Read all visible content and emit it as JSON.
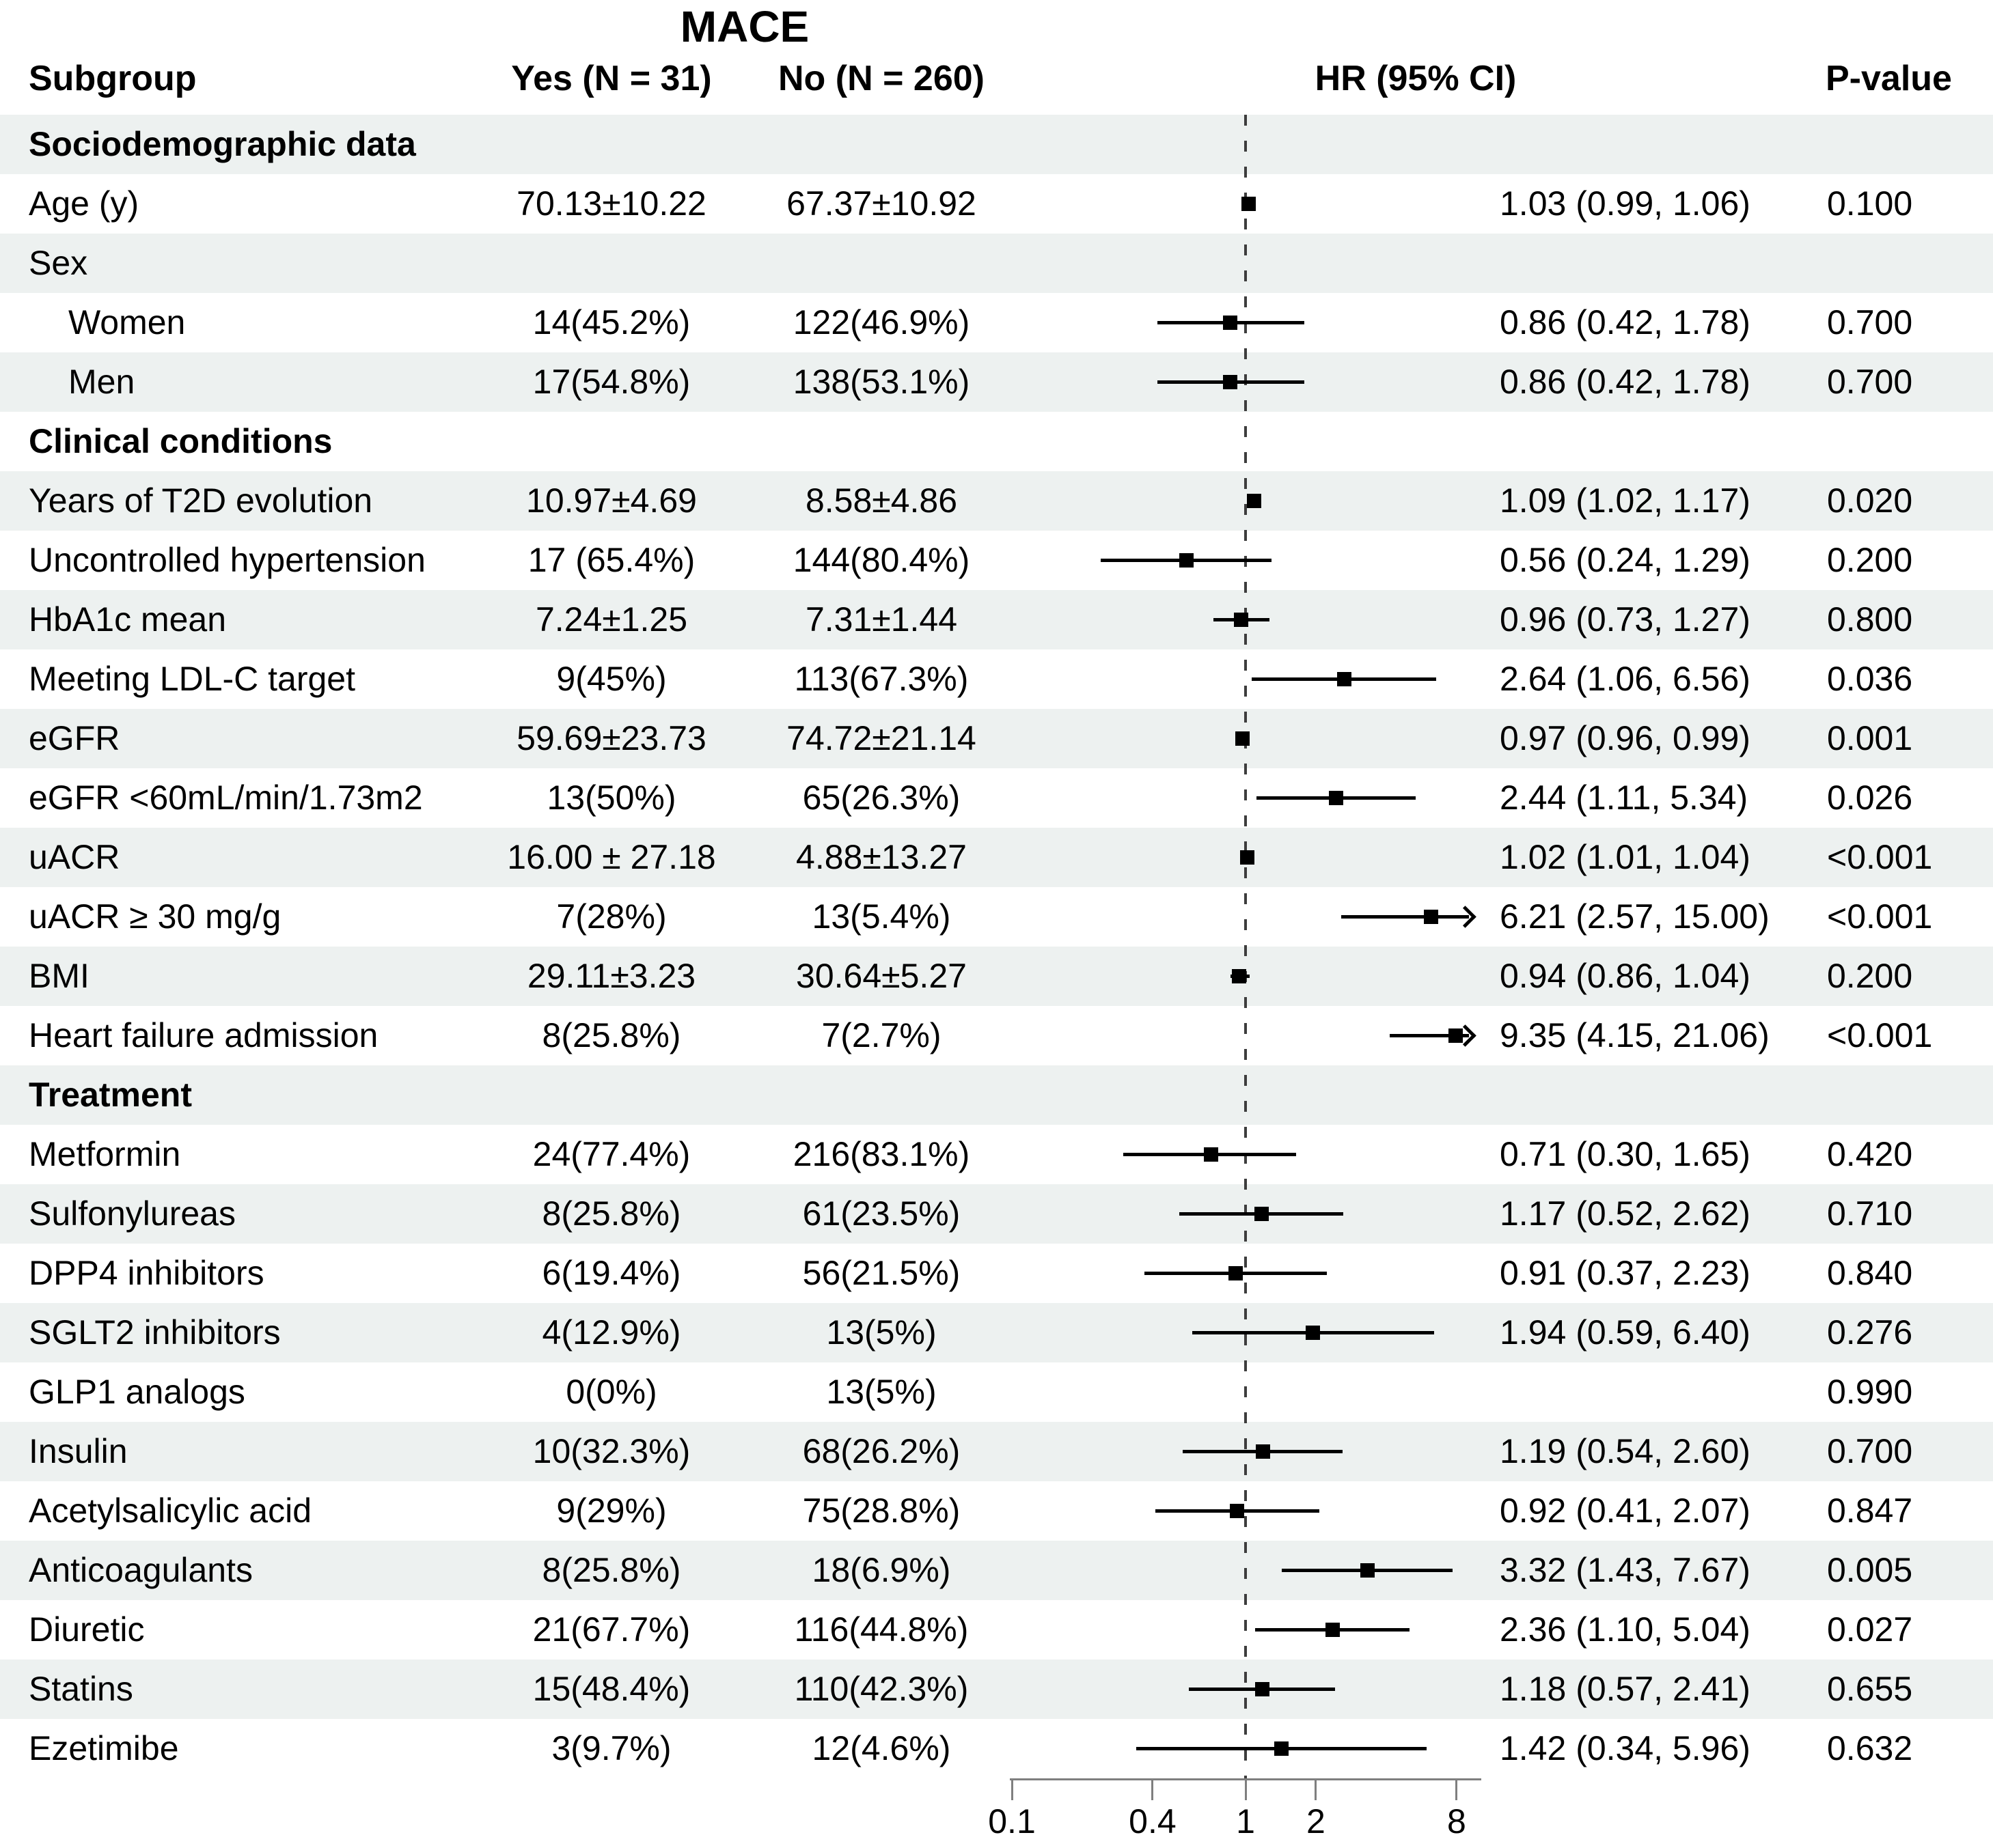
{
  "title": "MACE",
  "columns": {
    "subgroup": "Subgroup",
    "yes": "Yes (N = 31)",
    "no": "No (N = 260)",
    "hr": "HR (95% CI)",
    "p": "P-value"
  },
  "colors": {
    "stripe": "#edf1f0",
    "marker": "#000000",
    "ref_line": "#3d3d3d",
    "axis": "#7f7f7f"
  },
  "chart_data": {
    "type": "forest",
    "title": "MACE",
    "xscale": "log10",
    "axis": {
      "min": 0.1,
      "max": 8,
      "ref": 1,
      "ticks": [
        0.1,
        0.4,
        1,
        2,
        8
      ],
      "tick_labels": [
        "0.1",
        "0.4",
        "1",
        "2",
        "8"
      ]
    },
    "rows": [
      {
        "label": "Sociodemographic data",
        "section": true
      },
      {
        "label": "Age (y)",
        "yes": "70.13±10.22",
        "no": "67.37±10.92",
        "hr": 1.03,
        "lo": 0.99,
        "hi": 1.06,
        "hr_text": "1.03 (0.99, 1.06)",
        "p": "0.100"
      },
      {
        "label": "Sex"
      },
      {
        "label": "Women",
        "indent": true,
        "yes": "14(45.2%)",
        "no": "122(46.9%)",
        "hr": 0.86,
        "lo": 0.42,
        "hi": 1.78,
        "hr_text": "0.86 (0.42, 1.78)",
        "p": "0.700"
      },
      {
        "label": "Men",
        "indent": true,
        "yes": "17(54.8%)",
        "no": "138(53.1%)",
        "hr": 0.86,
        "lo": 0.42,
        "hi": 1.78,
        "hr_text": "0.86 (0.42, 1.78)",
        "p": "0.700"
      },
      {
        "label": "Clinical conditions",
        "section": true
      },
      {
        "label": "Years of T2D evolution",
        "yes": "10.97±4.69",
        "no": "8.58±4.86",
        "hr": 1.09,
        "lo": 1.02,
        "hi": 1.17,
        "hr_text": "1.09 (1.02, 1.17)",
        "p": "0.020"
      },
      {
        "label": "Uncontrolled hypertension",
        "yes": "17 (65.4%)",
        "no": "144(80.4%)",
        "hr": 0.56,
        "lo": 0.24,
        "hi": 1.29,
        "hr_text": "0.56 (0.24, 1.29)",
        "p": "0.200"
      },
      {
        "label": "HbA1c mean",
        "yes": "7.24±1.25",
        "no": "7.31±1.44",
        "hr": 0.96,
        "lo": 0.73,
        "hi": 1.27,
        "hr_text": "0.96 (0.73, 1.27)",
        "p": "0.800"
      },
      {
        "label": "Meeting LDL-C target",
        "yes": "9(45%)",
        "no": "113(67.3%)",
        "hr": 2.64,
        "lo": 1.06,
        "hi": 6.56,
        "hr_text": "2.64 (1.06, 6.56)",
        "p": "0.036"
      },
      {
        "label": "eGFR",
        "yes": "59.69±23.73",
        "no": "74.72±21.14",
        "hr": 0.97,
        "lo": 0.96,
        "hi": 0.99,
        "hr_text": "0.97 (0.96, 0.99)",
        "p": "0.001"
      },
      {
        "label": "eGFR <60mL/min/1.73m2",
        "yes": "13(50%)",
        "no": "65(26.3%)",
        "hr": 2.44,
        "lo": 1.11,
        "hi": 5.34,
        "hr_text": "2.44 (1.11, 5.34)",
        "p": "0.026"
      },
      {
        "label": "uACR",
        "yes": "16.00 ± 27.18",
        "no": "4.88±13.27",
        "hr": 1.02,
        "lo": 1.01,
        "hi": 1.04,
        "hr_text": "1.02 (1.01, 1.04)",
        "p": "<0.001"
      },
      {
        "label": "uACR ≥ 30 mg/g",
        "yes": "7(28%)",
        "no": "13(5.4%)",
        "hr": 6.21,
        "lo": 2.57,
        "hi": 15.0,
        "hr_text": "6.21 (2.57, 15.00)",
        "p": "<0.001"
      },
      {
        "label": "BMI",
        "yes": "29.11±3.23",
        "no": "30.64±5.27",
        "hr": 0.94,
        "lo": 0.86,
        "hi": 1.04,
        "hr_text": "0.94 (0.86, 1.04)",
        "p": "0.200"
      },
      {
        "label": "Heart failure admission",
        "yes": "8(25.8%)",
        "no": "7(2.7%)",
        "hr": 9.35,
        "lo": 4.15,
        "hi": 21.06,
        "hr_text": "9.35 (4.15, 21.06)",
        "p": "<0.001"
      },
      {
        "label": "Treatment",
        "section": true
      },
      {
        "label": "Metformin",
        "yes": "24(77.4%)",
        "no": "216(83.1%)",
        "hr": 0.71,
        "lo": 0.3,
        "hi": 1.65,
        "hr_text": "0.71 (0.30, 1.65)",
        "p": "0.420"
      },
      {
        "label": "Sulfonylureas",
        "yes": "8(25.8%)",
        "no": "61(23.5%)",
        "hr": 1.17,
        "lo": 0.52,
        "hi": 2.62,
        "hr_text": "1.17 (0.52, 2.62)",
        "p": "0.710"
      },
      {
        "label": "DPP4 inhibitors",
        "yes": "6(19.4%)",
        "no": "56(21.5%)",
        "hr": 0.91,
        "lo": 0.37,
        "hi": 2.23,
        "hr_text": "0.91 (0.37, 2.23)",
        "p": "0.840"
      },
      {
        "label": "SGLT2 inhibitors",
        "yes": "4(12.9%)",
        "no": "13(5%)",
        "hr": 1.94,
        "lo": 0.59,
        "hi": 6.4,
        "hr_text": "1.94 (0.59, 6.40)",
        "p": "0.276"
      },
      {
        "label": "GLP1 analogs",
        "yes": "0(0%)",
        "no": "13(5%)",
        "p": "0.990"
      },
      {
        "label": "Insulin",
        "yes": "10(32.3%)",
        "no": "68(26.2%)",
        "hr": 1.19,
        "lo": 0.54,
        "hi": 2.6,
        "hr_text": "1.19 (0.54, 2.60)",
        "p": "0.700"
      },
      {
        "label": "Acetylsalicylic acid",
        "yes": "9(29%)",
        "no": "75(28.8%)",
        "hr": 0.92,
        "lo": 0.41,
        "hi": 2.07,
        "hr_text": "0.92 (0.41, 2.07)",
        "p": "0.847"
      },
      {
        "label": "Anticoagulants",
        "yes": "8(25.8%)",
        "no": "18(6.9%)",
        "hr": 3.32,
        "lo": 1.43,
        "hi": 7.67,
        "hr_text": "3.32 (1.43, 7.67)",
        "p": "0.005"
      },
      {
        "label": "Diuretic",
        "yes": "21(67.7%)",
        "no": "116(44.8%)",
        "hr": 2.36,
        "lo": 1.1,
        "hi": 5.04,
        "hr_text": "2.36 (1.10, 5.04)",
        "p": "0.027"
      },
      {
        "label": "Statins",
        "yes": "15(48.4%)",
        "no": "110(42.3%)",
        "hr": 1.18,
        "lo": 0.57,
        "hi": 2.41,
        "hr_text": "1.18 (0.57, 2.41)",
        "p": "0.655"
      },
      {
        "label": "Ezetimibe",
        "yes": "3(9.7%)",
        "no": "12(4.6%)",
        "hr": 1.42,
        "lo": 0.34,
        "hi": 5.96,
        "hr_text": "1.42 (0.34, 5.96)",
        "p": "0.632"
      }
    ]
  }
}
